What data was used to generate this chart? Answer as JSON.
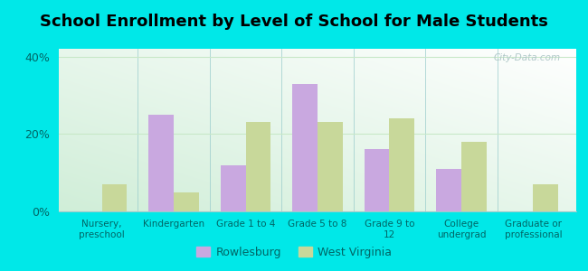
{
  "title": "School Enrollment by Level of School for Male Students",
  "categories": [
    "Nursery,\npreschool",
    "Kindergarten",
    "Grade 1 to 4",
    "Grade 5 to 8",
    "Grade 9 to\n12",
    "College\nundergrad",
    "Graduate or\nprofessional"
  ],
  "rowlesburg": [
    0,
    25,
    12,
    33,
    16,
    11,
    0
  ],
  "west_virginia": [
    7,
    5,
    23,
    23,
    24,
    18,
    7
  ],
  "rowlesburg_color": "#c9a8e0",
  "west_virginia_color": "#c8d89a",
  "background_color": "#00e8e8",
  "plot_bg_top_left": "#d8f0d0",
  "plot_bg_bottom_right": "#f8fef8",
  "ylim": [
    0,
    42
  ],
  "yticks": [
    0,
    20,
    40
  ],
  "ytick_labels": [
    "0%",
    "20%",
    "40%"
  ],
  "bar_width": 0.35,
  "title_fontsize": 13,
  "legend_labels": [
    "Rowlesburg",
    "West Virginia"
  ],
  "figsize": [
    6.5,
    3.0
  ],
  "dpi": 100,
  "watermark": "City-Data.com",
  "watermark_color": "#b0c8c8",
  "grid_color": "#c8e8c8",
  "tick_label_color": "#006666",
  "axis_label_color": "#006666"
}
